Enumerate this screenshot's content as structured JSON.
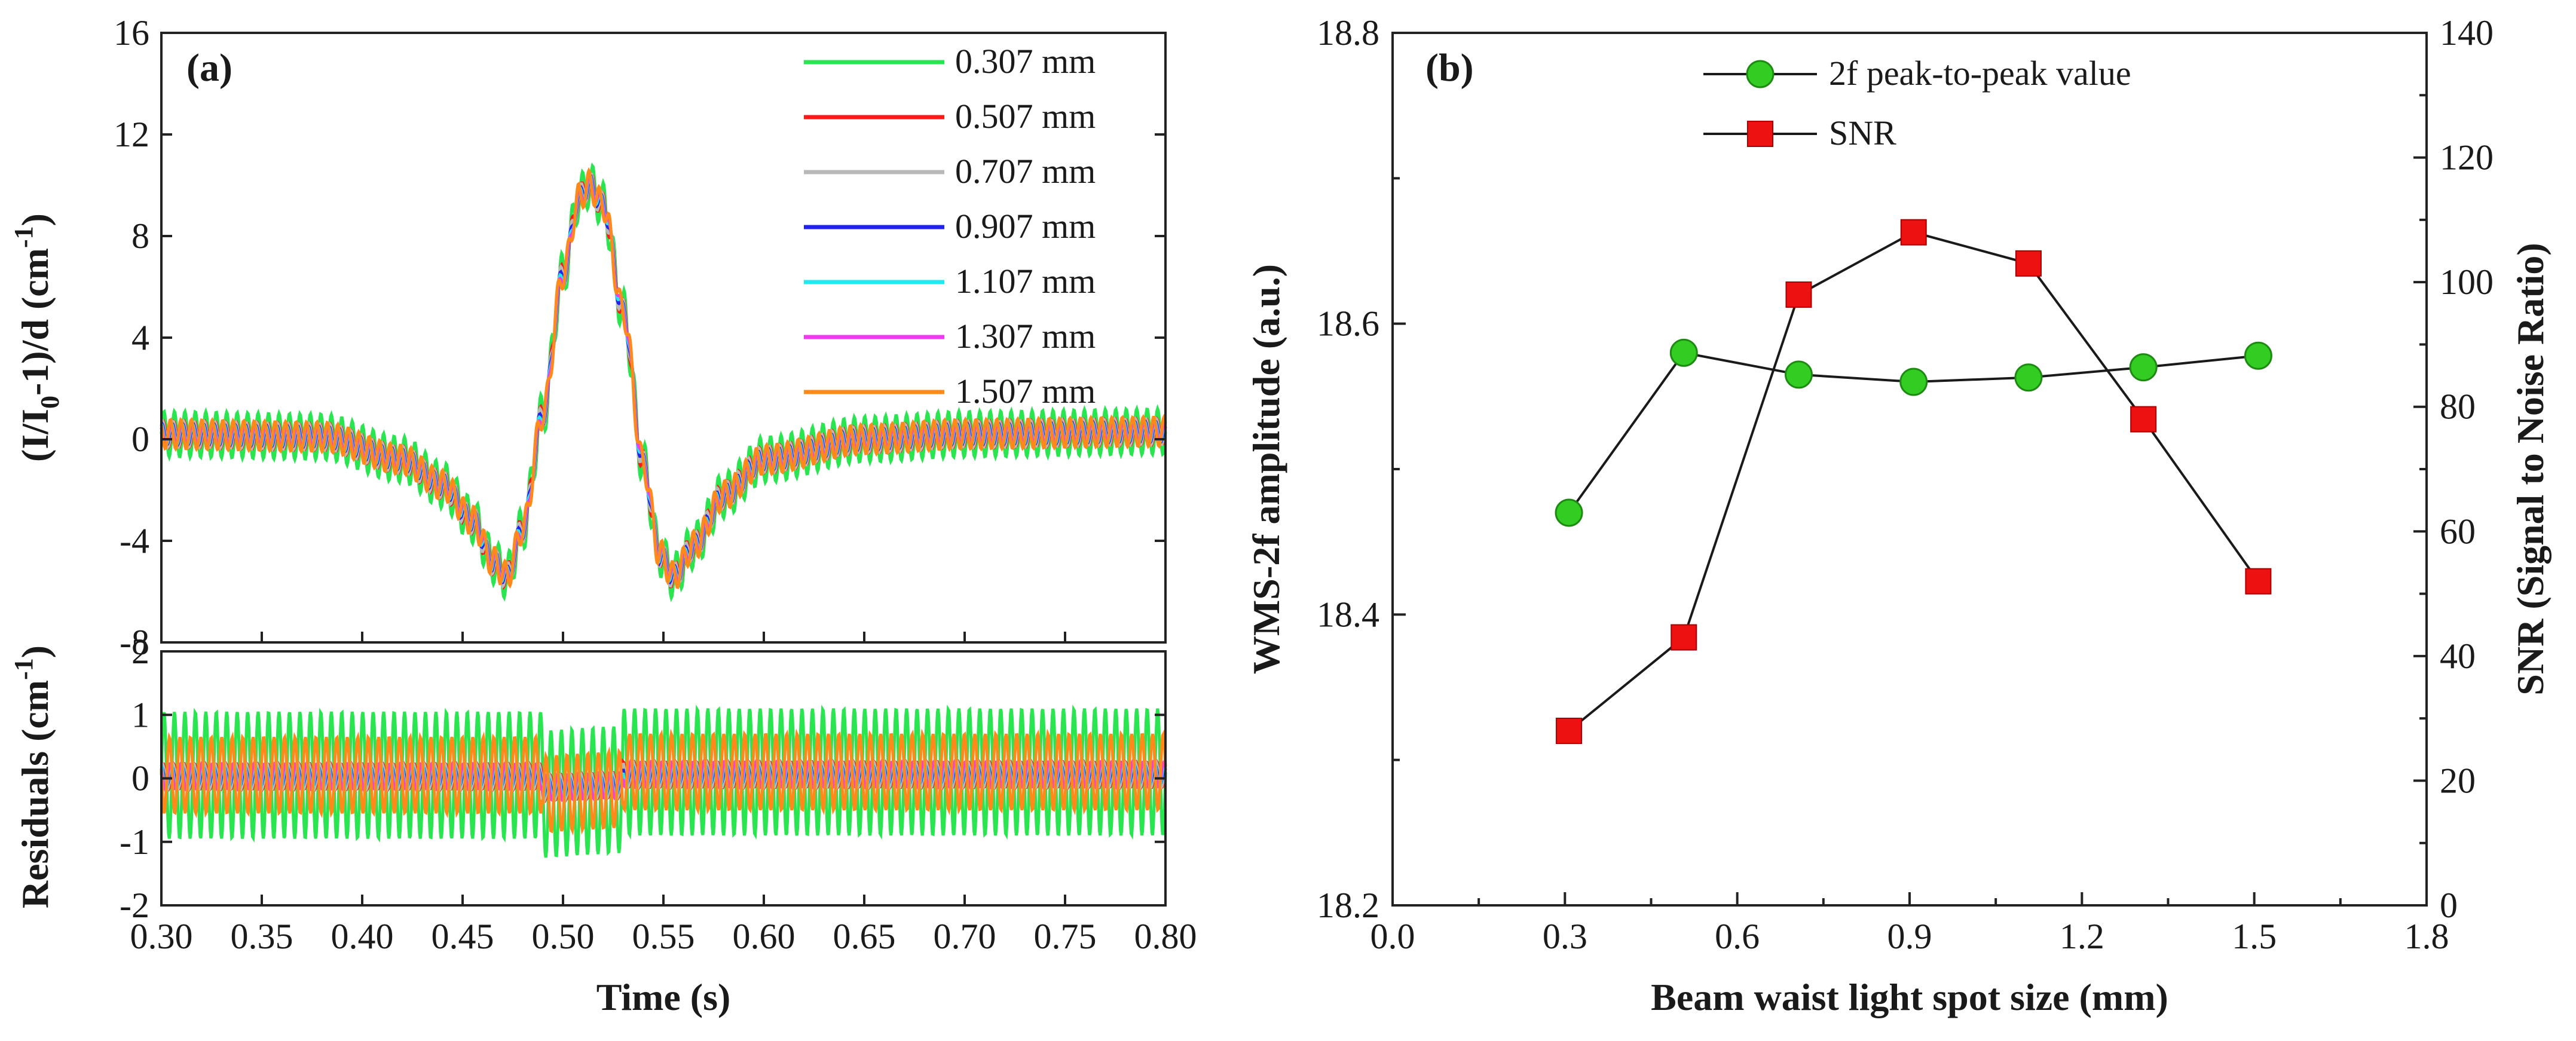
{
  "chart_data": [
    {
      "id": "a-top",
      "type": "line",
      "panel_label": "(a)",
      "ylabel_parts": [
        "(I/I",
        "0",
        "-1)/d (cm",
        "-1",
        ")"
      ],
      "ylim": [
        -8,
        16
      ],
      "yticks": [
        -8,
        -4,
        0,
        4,
        8,
        12,
        16
      ],
      "ytick_labels": [
        "-8",
        "-4",
        "0",
        "4",
        "8",
        "12",
        "16"
      ],
      "xlim": [
        0.3,
        0.8
      ],
      "legend_position": "top-right",
      "series": [
        {
          "name": "0.307 mm",
          "color": "#29e650",
          "ripple": 0.9
        },
        {
          "name": "0.507 mm",
          "color": "#ff1a1a",
          "ripple": 0.45
        },
        {
          "name": "0.707 mm",
          "color": "#b8b8b8",
          "ripple": 0.45
        },
        {
          "name": "0.907 mm",
          "color": "#2222ee",
          "ripple": 0.4
        },
        {
          "name": "1.107  mm",
          "color": "#22e8f0",
          "ripple": 0.45
        },
        {
          "name": "1.307  mm",
          "color": "#f03af0",
          "ripple": 0.45
        },
        {
          "name": "1.507  mm",
          "color": "#ff8a1a",
          "ripple": 0.6
        }
      ],
      "profile": {
        "x": [
          0.3,
          0.38,
          0.42,
          0.44,
          0.455,
          0.465,
          0.472,
          0.48,
          0.49,
          0.5,
          0.508,
          0.513,
          0.52,
          0.53,
          0.54,
          0.548,
          0.555,
          0.565,
          0.58,
          0.6,
          0.65,
          0.7,
          0.8
        ],
        "y": [
          0.2,
          0.1,
          -0.8,
          -1.8,
          -3.2,
          -4.8,
          -5.4,
          -3.5,
          1.0,
          6.5,
          9.5,
          10.0,
          9.2,
          5.0,
          -1.0,
          -4.5,
          -5.4,
          -4.2,
          -2.2,
          -0.8,
          0.0,
          0.2,
          0.3
        ]
      }
    },
    {
      "id": "a-bottom",
      "type": "line",
      "ylabel_parts": [
        "Residuals (cm",
        "-1",
        ")"
      ],
      "xlabel": "Time (s)",
      "ylim": [
        -2,
        2
      ],
      "yticks": [
        -2,
        -1,
        0,
        1,
        2
      ],
      "ytick_labels": [
        "-2",
        "-1",
        "0",
        "1",
        "2"
      ],
      "xlim": [
        0.3,
        0.8
      ],
      "xticks": [
        0.3,
        0.35,
        0.4,
        0.45,
        0.5,
        0.55,
        0.6,
        0.65,
        0.7,
        0.75,
        0.8
      ],
      "xtick_labels": [
        "0.30",
        "0.35",
        "0.40",
        "0.45",
        "0.50",
        "0.55",
        "0.60",
        "0.65",
        "0.70",
        "0.75",
        "0.80"
      ],
      "series_amplitudes": [
        1.0,
        0.2,
        0.2,
        0.15,
        0.2,
        0.2,
        0.6
      ]
    },
    {
      "id": "b",
      "type": "scatter-line",
      "panel_label": "(b)",
      "xlabel": "Beam waist light spot size (mm)",
      "ylabel_left": "WMS-2f amplitude (a.u.)",
      "ylabel_right": "SNR (Signal to Noise Ratio)",
      "xlim": [
        0.0,
        1.8
      ],
      "xticks": [
        0.0,
        0.3,
        0.6,
        0.9,
        1.2,
        1.5,
        1.8
      ],
      "xtick_labels": [
        "0.0",
        "0.3",
        "0.6",
        "0.9",
        "1.2",
        "1.5",
        "1.8"
      ],
      "ylim_left": [
        18.2,
        18.8
      ],
      "yticks_left": [
        18.2,
        18.4,
        18.6,
        18.8
      ],
      "ytick_labels_left": [
        "18.2",
        "18.4",
        "18.6",
        "18.8"
      ],
      "ylim_right": [
        0,
        140
      ],
      "yticks_right": [
        0,
        20,
        40,
        60,
        80,
        100,
        120,
        140
      ],
      "ytick_labels_right": [
        "0",
        "20",
        "40",
        "60",
        "80",
        "100",
        "120",
        "140"
      ],
      "legend_position": "top-center",
      "series": [
        {
          "name": "2f peak-to-peak value",
          "axis": "left",
          "marker": "circle",
          "color": "#33cc22",
          "x": [
            0.307,
            0.507,
            0.707,
            0.907,
            1.107,
            1.307,
            1.507
          ],
          "values": [
            18.47,
            18.58,
            18.565,
            18.56,
            18.563,
            18.57,
            18.578
          ]
        },
        {
          "name": "SNR",
          "axis": "right",
          "marker": "square",
          "color": "#ee1111",
          "x": [
            0.307,
            0.507,
            0.707,
            0.907,
            1.107,
            1.307,
            1.507
          ],
          "values": [
            28,
            43,
            98,
            108,
            103,
            78,
            52
          ]
        }
      ]
    }
  ]
}
